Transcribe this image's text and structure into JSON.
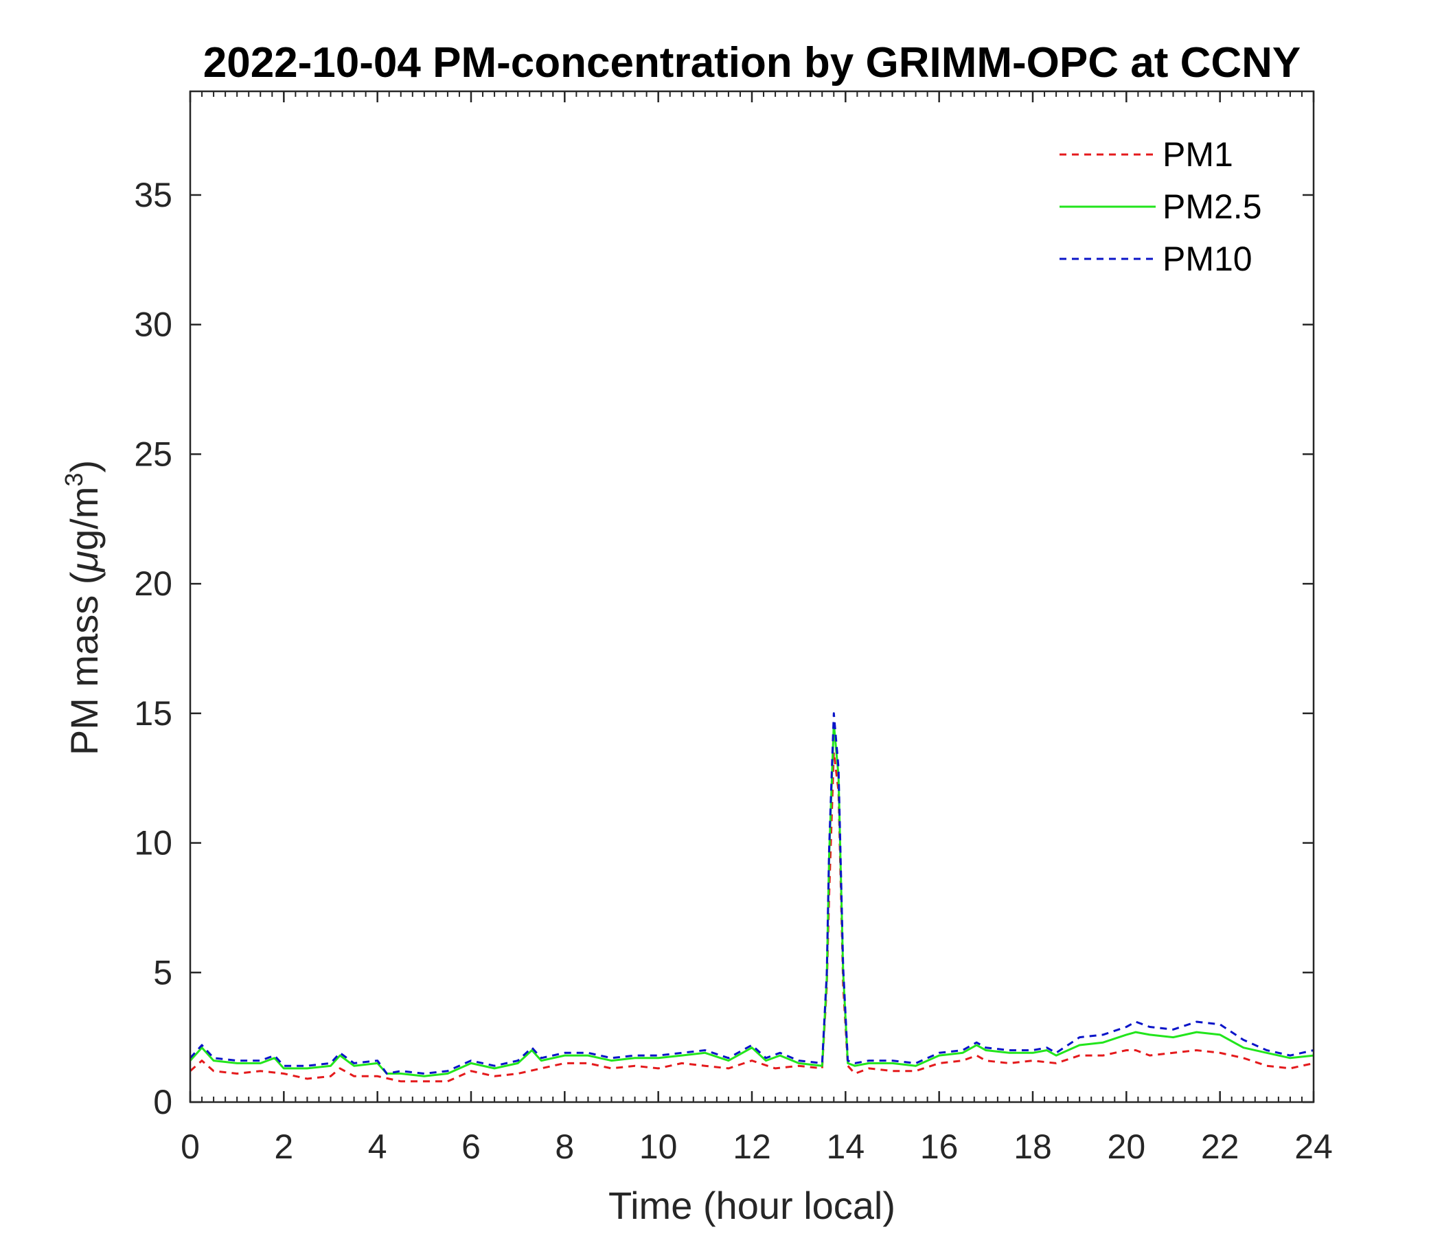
{
  "chart_data": {
    "type": "line",
    "title": "2022-10-04 PM-concentration by GRIMM-OPC at CCNY",
    "xlabel": "Time (hour local)",
    "ylabel_prefix": "PM mass (",
    "ylabel_mu": "μ",
    "ylabel_unit": "g/m",
    "ylabel_sup": "3",
    "ylabel_suffix": ")",
    "xlim": [
      0,
      24
    ],
    "ylim": [
      0,
      39
    ],
    "xticks": [
      0,
      2,
      4,
      6,
      8,
      10,
      12,
      14,
      16,
      18,
      20,
      22,
      24
    ],
    "yticks": [
      0,
      5,
      10,
      15,
      20,
      25,
      30,
      35
    ],
    "grid": false,
    "legend_position": "top-right",
    "series": [
      {
        "name": "PM1",
        "color": "#e41a1c",
        "style": "dashed",
        "x": [
          0,
          0.25,
          0.5,
          1,
          1.5,
          2,
          2.5,
          3,
          3.2,
          3.5,
          4,
          4.5,
          5,
          5.5,
          6,
          6.5,
          7,
          7.5,
          8,
          8.5,
          9,
          9.5,
          10,
          10.5,
          11,
          11.5,
          12,
          12.5,
          13,
          13.5,
          13.6,
          13.65,
          13.75,
          13.85,
          13.95,
          14.05,
          14.2,
          14.5,
          15,
          15.5,
          16,
          16.5,
          16.8,
          17,
          17.5,
          18,
          18.5,
          19,
          19.5,
          20,
          20.2,
          20.5,
          21,
          21.5,
          22,
          22.5,
          23,
          23.5,
          24
        ],
        "y": [
          1.2,
          1.6,
          1.2,
          1.1,
          1.2,
          1.1,
          0.9,
          1.0,
          1.3,
          1.0,
          1.0,
          0.8,
          0.8,
          0.8,
          1.2,
          1.0,
          1.1,
          1.3,
          1.5,
          1.5,
          1.3,
          1.4,
          1.3,
          1.5,
          1.4,
          1.3,
          1.6,
          1.3,
          1.4,
          1.3,
          4.5,
          8.0,
          13.5,
          12.0,
          4.5,
          1.4,
          1.1,
          1.3,
          1.2,
          1.2,
          1.5,
          1.6,
          1.8,
          1.6,
          1.5,
          1.6,
          1.5,
          1.8,
          1.8,
          2.0,
          2.0,
          1.8,
          1.9,
          2.0,
          1.9,
          1.7,
          1.4,
          1.3,
          1.5
        ]
      },
      {
        "name": "PM2.5",
        "color": "#22e51c",
        "style": "solid",
        "x": [
          0,
          0.25,
          0.5,
          1,
          1.5,
          1.8,
          2,
          2.5,
          3,
          3.2,
          3.5,
          4,
          4.2,
          4.5,
          5,
          5.5,
          6,
          6.5,
          7,
          7.3,
          7.5,
          8,
          8.5,
          9,
          9.5,
          10,
          10.5,
          11,
          11.5,
          12,
          12.3,
          12.6,
          13,
          13.5,
          13.6,
          13.65,
          13.75,
          13.85,
          13.95,
          14.05,
          14.2,
          14.5,
          15,
          15.5,
          16,
          16.5,
          16.8,
          17,
          17.5,
          18,
          18.3,
          18.5,
          19,
          19.5,
          20,
          20.2,
          20.5,
          21,
          21.5,
          22,
          22.5,
          23,
          23.5,
          24
        ],
        "y": [
          1.6,
          2.1,
          1.6,
          1.5,
          1.5,
          1.7,
          1.3,
          1.3,
          1.4,
          1.8,
          1.4,
          1.5,
          1.1,
          1.1,
          1.0,
          1.1,
          1.5,
          1.3,
          1.5,
          2.0,
          1.6,
          1.8,
          1.8,
          1.6,
          1.7,
          1.7,
          1.8,
          1.9,
          1.6,
          2.1,
          1.6,
          1.8,
          1.5,
          1.4,
          4.8,
          9.5,
          14.6,
          12.6,
          5.0,
          1.5,
          1.4,
          1.5,
          1.5,
          1.4,
          1.8,
          1.9,
          2.2,
          2.0,
          1.9,
          1.9,
          2.0,
          1.8,
          2.2,
          2.3,
          2.6,
          2.7,
          2.6,
          2.5,
          2.7,
          2.6,
          2.1,
          1.9,
          1.7,
          1.8
        ]
      },
      {
        "name": "PM10",
        "color": "#0a14c8",
        "style": "dashed",
        "x": [
          0,
          0.25,
          0.5,
          1,
          1.5,
          1.8,
          2,
          2.5,
          3,
          3.2,
          3.5,
          4,
          4.2,
          4.5,
          5,
          5.5,
          6,
          6.5,
          7,
          7.3,
          7.5,
          8,
          8.5,
          9,
          9.5,
          10,
          10.5,
          11,
          11.5,
          12,
          12.3,
          12.6,
          13,
          13.5,
          13.6,
          13.65,
          13.75,
          13.85,
          13.95,
          14.05,
          14.2,
          14.5,
          15,
          15.5,
          16,
          16.5,
          16.8,
          17,
          17.5,
          18,
          18.3,
          18.5,
          19,
          19.5,
          20,
          20.2,
          20.5,
          21,
          21.5,
          22,
          22.5,
          23,
          23.5,
          24
        ],
        "y": [
          1.7,
          2.2,
          1.7,
          1.6,
          1.6,
          1.8,
          1.4,
          1.4,
          1.5,
          1.9,
          1.5,
          1.6,
          1.1,
          1.2,
          1.1,
          1.2,
          1.6,
          1.4,
          1.6,
          2.1,
          1.7,
          1.9,
          1.9,
          1.7,
          1.8,
          1.8,
          1.9,
          2.0,
          1.7,
          2.2,
          1.7,
          1.9,
          1.6,
          1.5,
          5.0,
          9.8,
          15.0,
          12.9,
          5.2,
          1.6,
          1.5,
          1.6,
          1.6,
          1.5,
          1.9,
          2.0,
          2.3,
          2.1,
          2.0,
          2.0,
          2.1,
          1.9,
          2.5,
          2.6,
          2.9,
          3.1,
          2.9,
          2.8,
          3.1,
          3.0,
          2.4,
          2.0,
          1.8,
          2.0
        ]
      }
    ]
  }
}
